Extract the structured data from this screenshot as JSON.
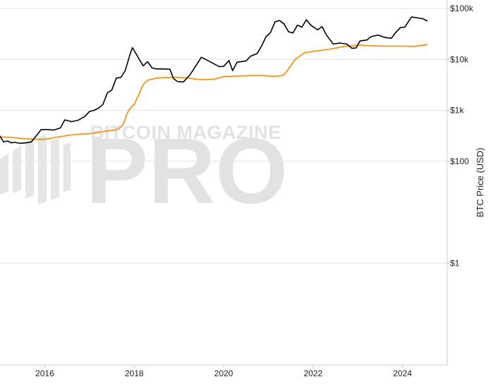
{
  "watermark": {
    "brand": "BITCOIN MAGAZINE",
    "product": "PRO",
    "reg": "®"
  },
  "chart_data": {
    "type": "line",
    "title": "",
    "xlabel": "",
    "ylabel": "BTC Price (USD)",
    "y_scale": "log",
    "xlim": [
      2015.0,
      2025.0
    ],
    "ylim": [
      0.01,
      100000
    ],
    "grid": true,
    "y_ticks": [
      {
        "value": 1,
        "label": "$1"
      },
      {
        "value": 100,
        "label": "$100"
      },
      {
        "value": 1000,
        "label": "$1k"
      },
      {
        "value": 10000,
        "label": "$10k"
      },
      {
        "value": 100000,
        "label": "$100k"
      }
    ],
    "x_ticks": [
      {
        "value": 2016,
        "label": "2016"
      },
      {
        "value": 2018,
        "label": "2018"
      },
      {
        "value": 2020,
        "label": "2020"
      },
      {
        "value": 2022,
        "label": "2022"
      },
      {
        "value": 2024,
        "label": "2024"
      }
    ],
    "series": [
      {
        "color": "#000000",
        "x": [
          2015.0,
          2015.08,
          2015.17,
          2015.25,
          2015.33,
          2015.45,
          2015.58,
          2015.7,
          2015.83,
          2015.92,
          2016.05,
          2016.2,
          2016.35,
          2016.45,
          2016.6,
          2016.75,
          2016.9,
          2017.0,
          2017.1,
          2017.2,
          2017.3,
          2017.4,
          2017.5,
          2017.6,
          2017.7,
          2017.8,
          2017.9,
          2017.96,
          2018.05,
          2018.12,
          2018.2,
          2018.3,
          2018.4,
          2018.5,
          2018.65,
          2018.8,
          2018.88,
          2018.96,
          2019.1,
          2019.25,
          2019.4,
          2019.5,
          2019.6,
          2019.75,
          2019.9,
          2020.0,
          2020.12,
          2020.2,
          2020.3,
          2020.5,
          2020.6,
          2020.75,
          2020.85,
          2020.95,
          2021.05,
          2021.15,
          2021.25,
          2021.35,
          2021.45,
          2021.55,
          2021.65,
          2021.75,
          2021.85,
          2021.95,
          2022.1,
          2022.2,
          2022.3,
          2022.45,
          2022.6,
          2022.75,
          2022.87,
          2022.96,
          2023.05,
          2023.2,
          2023.3,
          2023.45,
          2023.6,
          2023.75,
          2023.85,
          2023.95,
          2024.05,
          2024.2,
          2024.35,
          2024.45,
          2024.55
        ],
        "y": [
          310,
          240,
          250,
          230,
          235,
          225,
          230,
          240,
          330,
          420,
          420,
          410,
          450,
          650,
          600,
          640,
          760,
          950,
          1000,
          1100,
          1300,
          2200,
          2500,
          4300,
          4400,
          6000,
          12000,
          17000,
          12500,
          9800,
          7500,
          9000,
          6800,
          6500,
          6500,
          6400,
          4200,
          3700,
          3600,
          5000,
          8000,
          11000,
          10000,
          8500,
          7200,
          7300,
          9500,
          6000,
          8800,
          9300,
          11500,
          13000,
          18500,
          28000,
          34000,
          55000,
          58000,
          50000,
          35000,
          33000,
          47000,
          43000,
          60000,
          47000,
          38000,
          44000,
          30000,
          20000,
          21000,
          20000,
          16500,
          16800,
          23000,
          24000,
          28000,
          30000,
          27000,
          26000,
          34000,
          42000,
          43000,
          68000,
          65000,
          63000,
          57000
        ]
      },
      {
        "color": "#f7931a",
        "x": [
          2015.0,
          2015.2,
          2015.5,
          2015.75,
          2016.0,
          2016.3,
          2016.6,
          2016.9,
          2017.1,
          2017.3,
          2017.45,
          2017.55,
          2017.65,
          2017.75,
          2017.85,
          2017.93,
          2018.0,
          2018.1,
          2018.2,
          2018.3,
          2018.5,
          2018.7,
          2018.9,
          2019.2,
          2019.5,
          2019.8,
          2020.0,
          2020.3,
          2020.6,
          2020.9,
          2021.1,
          2021.2,
          2021.3,
          2021.35,
          2021.45,
          2021.6,
          2021.8,
          2022.1,
          2022.4,
          2022.7,
          2023.0,
          2023.3,
          2023.6,
          2024.0,
          2024.3,
          2024.55
        ],
        "y": [
          300,
          295,
          280,
          270,
          270,
          300,
          330,
          345,
          355,
          380,
          400,
          410,
          430,
          520,
          900,
          1150,
          1300,
          2000,
          3200,
          3900,
          4300,
          4400,
          4450,
          4300,
          4000,
          4100,
          4600,
          4700,
          4800,
          4800,
          4650,
          4700,
          4800,
          5000,
          6500,
          10000,
          13500,
          14800,
          16000,
          18000,
          19000,
          18500,
          18200,
          18200,
          18100,
          19500
        ]
      }
    ]
  }
}
